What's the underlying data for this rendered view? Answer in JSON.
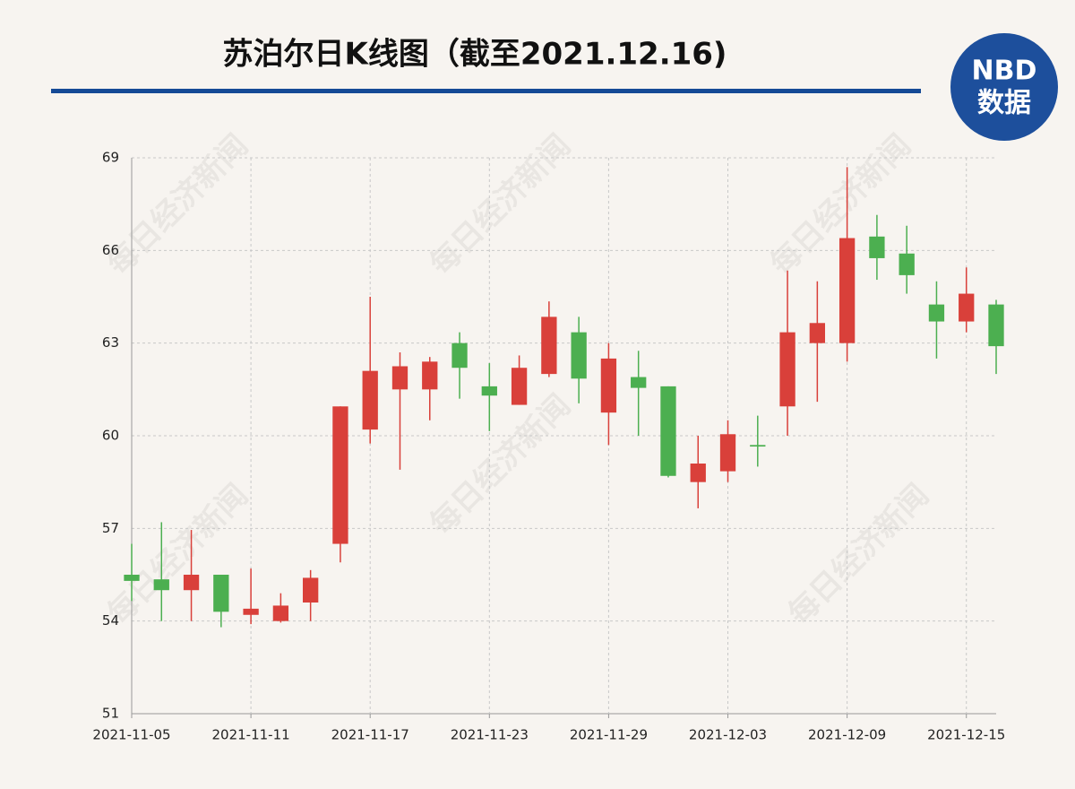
{
  "chart_data": {
    "type": "candlestick",
    "title": "苏泊尔日K线图（截至2021.12.16)",
    "logo": {
      "top": "NBD",
      "bottom": "数据"
    },
    "watermark": "每日经济新闻",
    "categories": [
      "2021-11-05",
      null,
      null,
      null,
      "2021-11-11",
      null,
      null,
      null,
      "2021-11-17",
      null,
      null,
      null,
      "2021-11-23",
      null,
      null,
      null,
      "2021-11-29",
      null,
      null,
      null,
      "2021-12-03",
      null,
      null,
      null,
      "2021-12-09",
      null,
      null,
      null,
      "2021-12-15",
      null
    ],
    "open": [
      55.5,
      55.35,
      55.0,
      55.5,
      54.2,
      54.0,
      54.6,
      56.5,
      60.2,
      61.5,
      61.5,
      63.0,
      61.6,
      61.0,
      62.0,
      63.35,
      60.75,
      61.9,
      61.6,
      58.5,
      58.85,
      59.7,
      60.95,
      63.0,
      63.0,
      66.45,
      65.9,
      64.25,
      63.7,
      64.25
    ],
    "high": [
      56.5,
      57.2,
      56.95,
      55.5,
      55.7,
      54.9,
      55.65,
      60.95,
      64.5,
      62.7,
      62.55,
      63.35,
      62.35,
      62.6,
      64.35,
      63.85,
      63.0,
      62.75,
      61.6,
      60.0,
      60.5,
      60.65,
      65.35,
      65.0,
      68.7,
      67.15,
      66.8,
      65.0,
      65.45,
      64.4
    ],
    "low": [
      54.65,
      54.0,
      54.0,
      53.8,
      53.9,
      53.95,
      54.0,
      55.9,
      59.75,
      58.9,
      60.5,
      61.2,
      60.15,
      61.0,
      61.9,
      61.05,
      59.7,
      60.0,
      58.65,
      57.65,
      58.5,
      59.0,
      60.0,
      61.1,
      62.4,
      65.05,
      64.6,
      62.5,
      63.35,
      62.0
    ],
    "close": [
      55.3,
      55.0,
      55.5,
      54.3,
      54.4,
      54.5,
      55.4,
      60.95,
      62.1,
      62.25,
      62.4,
      62.2,
      61.3,
      62.2,
      63.85,
      61.85,
      62.5,
      61.55,
      58.7,
      59.1,
      60.05,
      59.65,
      63.35,
      63.65,
      66.4,
      65.75,
      65.2,
      63.7,
      64.6,
      62.9
    ],
    "up_color": "#d9403a",
    "down_color": "#4caf50",
    "ylim": [
      51,
      69
    ],
    "yticks": [
      51,
      54,
      57,
      60,
      63,
      66,
      69
    ],
    "grid": true
  }
}
